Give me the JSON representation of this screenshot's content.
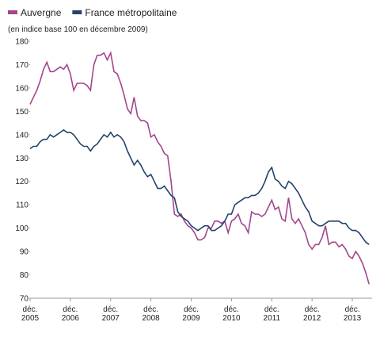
{
  "chart_data": {
    "type": "line",
    "subtitle": "(en indice base 100 en décembre 2009)",
    "categories": [
      "déc. 2005",
      null,
      null,
      null,
      null,
      null,
      null,
      null,
      null,
      null,
      null,
      null,
      "déc. 2006",
      null,
      null,
      null,
      null,
      null,
      null,
      null,
      null,
      null,
      null,
      null,
      "déc. 2007",
      null,
      null,
      null,
      null,
      null,
      null,
      null,
      null,
      null,
      null,
      null,
      "déc. 2008",
      null,
      null,
      null,
      null,
      null,
      null,
      null,
      null,
      null,
      null,
      null,
      "déc. 2009",
      null,
      null,
      null,
      null,
      null,
      null,
      null,
      null,
      null,
      null,
      null,
      "déc. 2010",
      null,
      null,
      null,
      null,
      null,
      null,
      null,
      null,
      null,
      null,
      null,
      "déc. 2011",
      null,
      null,
      null,
      null,
      null,
      null,
      null,
      null,
      null,
      null,
      null,
      "déc. 2012",
      null,
      null,
      null,
      null,
      null,
      null,
      null,
      null,
      null,
      null,
      null,
      "déc. 2013",
      null,
      null,
      null,
      null,
      null
    ],
    "series": [
      {
        "name": "Auvergne",
        "color": "#a3468e",
        "values": [
          153,
          156,
          159,
          163,
          168,
          171,
          167,
          167,
          168,
          169,
          168,
          170,
          166,
          159,
          162,
          162,
          162,
          161,
          159,
          170,
          174,
          174,
          175,
          172,
          175,
          167,
          166,
          162,
          157,
          151,
          149,
          156,
          148,
          146,
          146,
          145,
          139,
          140,
          137,
          135,
          132,
          131,
          120,
          106,
          105,
          106,
          103,
          101,
          100,
          98,
          95,
          95,
          96,
          100,
          100,
          103,
          103,
          102,
          103,
          98,
          103,
          104,
          106,
          102,
          101,
          98,
          107,
          106,
          106,
          105,
          106,
          109,
          112,
          108,
          109,
          104,
          103,
          113,
          104,
          102,
          104,
          101,
          98,
          93,
          91,
          93,
          93,
          96,
          101,
          93,
          94,
          94,
          92,
          93,
          91,
          88,
          87,
          90,
          88,
          85,
          81,
          76
        ]
      },
      {
        "name": "France métropolitaine",
        "color": "#24426b",
        "values": [
          134,
          135,
          135,
          137,
          138,
          138,
          140,
          139,
          140,
          141,
          142,
          141,
          141,
          140,
          138,
          136,
          135,
          135,
          133,
          135,
          136,
          138,
          140,
          139,
          141,
          139,
          140,
          139,
          137,
          133,
          130,
          127,
          129,
          127,
          124,
          122,
          123,
          120,
          117,
          117,
          118,
          116,
          114,
          113,
          107,
          105,
          104,
          103,
          101,
          100,
          99,
          100,
          101,
          101,
          99,
          99,
          100,
          101,
          103,
          106,
          106,
          110,
          111,
          112,
          113,
          113,
          114,
          114,
          115,
          117,
          120,
          124,
          126,
          121,
          120,
          118,
          117,
          120,
          119,
          117,
          115,
          112,
          109,
          107,
          103,
          102,
          101,
          101,
          102,
          103,
          103,
          103,
          103,
          102,
          102,
          100,
          99,
          99,
          98,
          96,
          94,
          93
        ]
      }
    ],
    "ylim": [
      70,
      180
    ],
    "yticks": [
      70,
      80,
      90,
      100,
      110,
      120,
      130,
      140,
      150,
      160,
      170,
      180
    ]
  }
}
